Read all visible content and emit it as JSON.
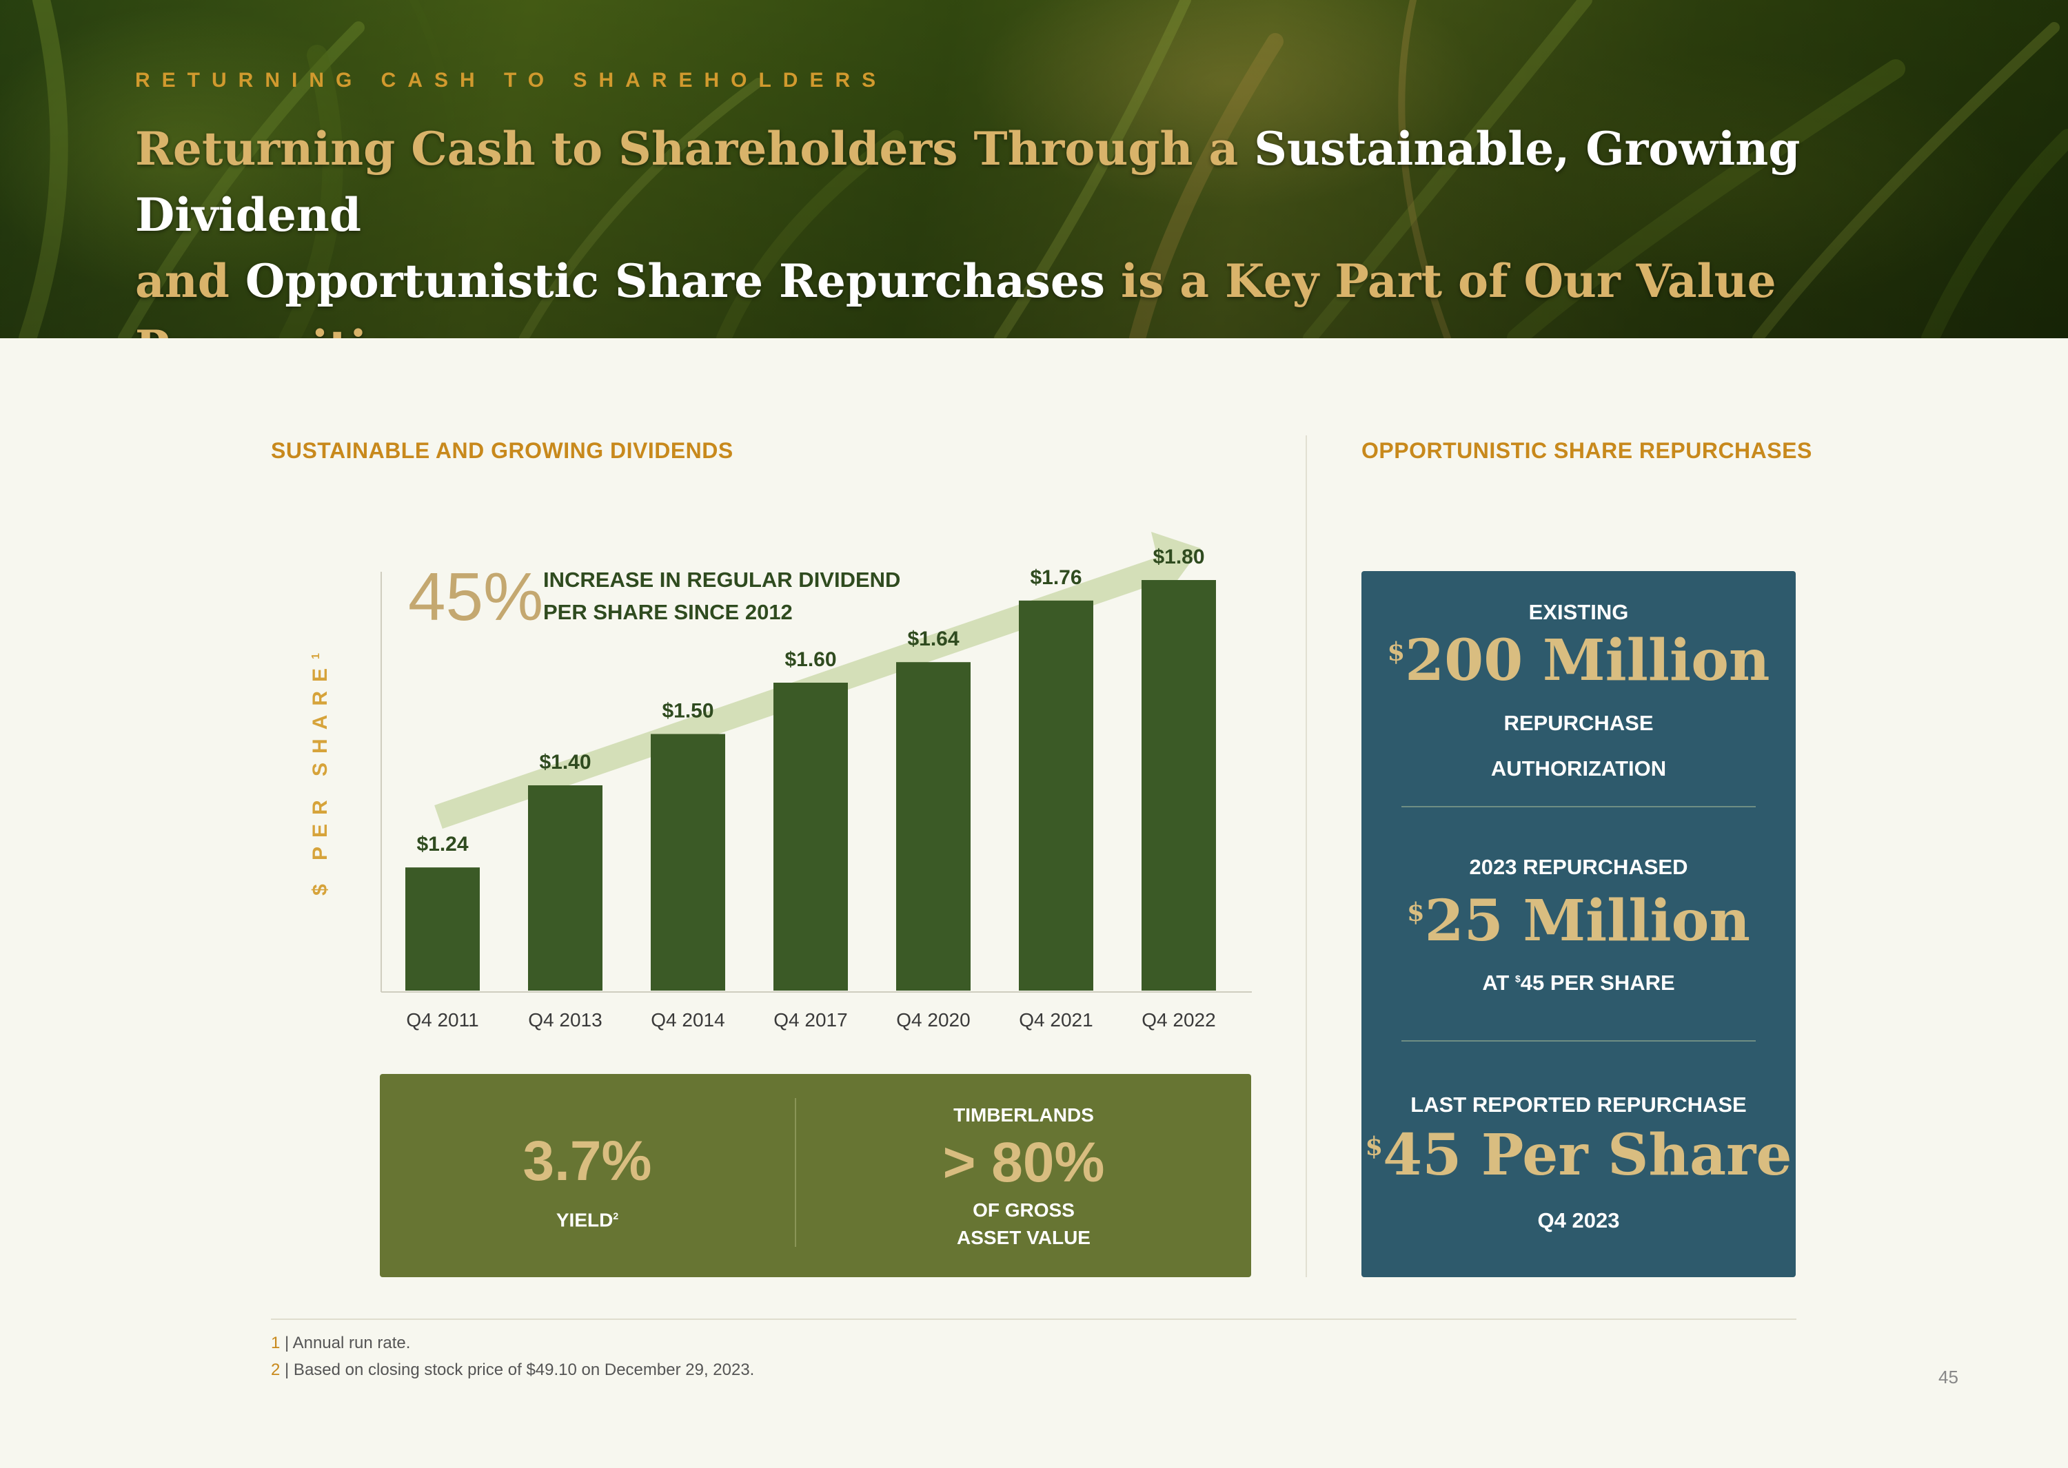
{
  "header": {
    "kicker": "RETURNING CASH TO SHAREHOLDERS",
    "title_parts": [
      {
        "text": "Returning Cash to Shareholders Through a ",
        "highlight": false
      },
      {
        "text": "Sustainable, Growing Dividend",
        "highlight": true
      },
      {
        "text": "and ",
        "highlight": false
      },
      {
        "text": "Opportunistic Share Repurchases",
        "highlight": true
      },
      {
        "text": " is a Key Part of Our Value Proposition",
        "highlight": false
      }
    ]
  },
  "dividends": {
    "section_title": "SUSTAINABLE AND GROWING DIVIDENDS",
    "y_axis_label": "$ PER SHARE",
    "y_axis_footnote": "1",
    "increase_pct": "45%",
    "increase_line1": "INCREASE IN REGULAR DIVIDEND",
    "increase_line2": "PER SHARE SINCE 2012"
  },
  "chart_data": {
    "type": "bar",
    "categories": [
      "Q4 2011",
      "Q4 2013",
      "Q4 2014",
      "Q4 2017",
      "Q4 2020",
      "Q4 2021",
      "Q4 2022"
    ],
    "values": [
      1.24,
      1.4,
      1.5,
      1.6,
      1.64,
      1.76,
      1.8
    ],
    "value_labels": [
      "$1.24",
      "$1.40",
      "$1.50",
      "$1.60",
      "$1.64",
      "$1.76",
      "$1.80"
    ],
    "title": "",
    "xlabel": "",
    "ylabel": "$ PER SHARE",
    "ylim": [
      1.0,
      1.8
    ],
    "grid": false,
    "bar_color": "#3b5a26",
    "trend_arrow_color": "#d4dfb8"
  },
  "stats": {
    "yield_value": "3.7%",
    "yield_label": "YIELD",
    "yield_footnote": "2",
    "timber_top": "TIMBERLANDS",
    "timber_value": "> 80%",
    "timber_line1": "OF GROSS",
    "timber_line2": "ASSET VALUE"
  },
  "repurchases": {
    "section_title": "OPPORTUNISTIC SHARE REPURCHASES",
    "existing_label": "EXISTING",
    "existing_currency": "$",
    "existing_value": "200 Million",
    "existing_line1": "REPURCHASE",
    "existing_line2": "AUTHORIZATION",
    "repurchased_label": "2023 REPURCHASED",
    "repurchased_currency": "$",
    "repurchased_value": "25 Million",
    "repurchased_at_prefix": "AT ",
    "repurchased_at_currency": "$",
    "repurchased_at_rest": "45 PER SHARE",
    "last_label": "LAST REPORTED REPURCHASE",
    "last_currency": "$",
    "last_value": "45 Per Share",
    "last_period": "Q4 2023"
  },
  "footnotes": [
    {
      "num": "1",
      "text": " | Annual run rate."
    },
    {
      "num": "2",
      "text": " | Based on closing stock price of $49.10 on December 29, 2023."
    }
  ],
  "page_number": "45",
  "colors": {
    "accent_gold": "#c8891c",
    "dark_green": "#3b5a26",
    "olive": "#677533",
    "teal": "#2e5a6c",
    "background": "#f7f7ef"
  }
}
